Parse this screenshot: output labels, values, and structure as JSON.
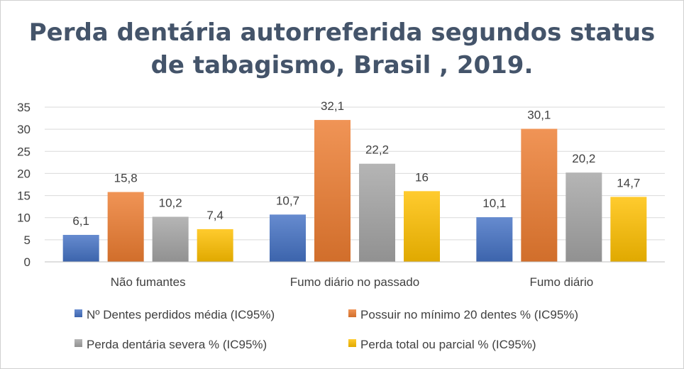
{
  "chart_data": {
    "type": "bar",
    "title": "Perda dentária autorreferida segundos status\nde tabagismo, Brasil , 2019.",
    "categories": [
      "Não fumantes",
      "Fumo diário no passado",
      "Fumo diário"
    ],
    "series": [
      {
        "name": "Nº Dentes perdidos média (IC95%)",
        "values": [
          6.1,
          10.7,
          10.1
        ],
        "labels": [
          "6,1",
          "10,7",
          "10,1"
        ],
        "color": "#4472c4"
      },
      {
        "name": "Possuir no mínimo 20 dentes % (IC95%)",
        "values": [
          15.8,
          32.1,
          30.1
        ],
        "labels": [
          "15,8",
          "32,1",
          "30,1"
        ],
        "color": "#ed7d31"
      },
      {
        "name": "Perda dentária severa % (IC95%)",
        "values": [
          10.2,
          22.2,
          20.2
        ],
        "labels": [
          "10,2",
          "22,2",
          "20,2"
        ],
        "color": "#a5a5a5"
      },
      {
        "name": "Perda total ou parcial % (IC95%)",
        "values": [
          7.4,
          16,
          14.7
        ],
        "labels": [
          "7,4",
          "16",
          "14,7"
        ],
        "color": "#ffc000"
      }
    ],
    "ylim": [
      0,
      35
    ],
    "yticks": [
      0,
      5,
      10,
      15,
      20,
      25,
      30,
      35
    ],
    "grid": true,
    "legend_position": "bottom"
  }
}
